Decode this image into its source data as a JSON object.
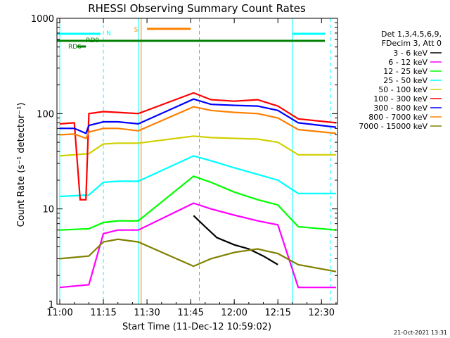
{
  "chart_data": {
    "type": "line",
    "title": "RHESSI Observing Summary Count Rates",
    "xlabel": "Start Time (11-Dec-12 10:59:02)",
    "ylabel": "Count Rate (s⁻¹ detector⁻¹)",
    "y_scale": "log",
    "xlim": [
      "10:59:02",
      "12:35:30"
    ],
    "ylim": [
      1,
      1000
    ],
    "x_ticks": [
      "11:00",
      "11:15",
      "11:30",
      "11:45",
      "12:00",
      "12:15",
      "12:30"
    ],
    "y_ticks": [
      "1",
      "10",
      "100",
      "1000"
    ],
    "legend_header": [
      "Det 1,3,4,5,6,9,",
      "FDecim 3, Att 0"
    ],
    "legend_position": "right",
    "footer_date": "21-Oct-2021 13:31",
    "flags": {
      "N_label": "N",
      "S_label": "S",
      "RD9_label": "RD9",
      "RD6_label": "RD6"
    },
    "gaps": [
      {
        "start": "11:28:00",
        "end": "11:48:00"
      }
    ],
    "series": [
      {
        "name": "3 - 6 keV",
        "color": "#000000",
        "x": [
          "11:46",
          "11:50",
          "11:54",
          "12:00",
          "12:05",
          "12:10",
          "12:15"
        ],
        "y": [
          8.5,
          6.5,
          5.0,
          4.2,
          3.8,
          3.2,
          2.6
        ]
      },
      {
        "name": "6 - 12 keV",
        "color": "#ff00ff",
        "x": [
          "11:00",
          "11:10",
          "11:15",
          "11:20",
          "11:27",
          "11:46",
          "11:52",
          "12:00",
          "12:08",
          "12:15",
          "12:22",
          "12:35"
        ],
        "y": [
          1.5,
          1.6,
          5.5,
          6.0,
          6.0,
          11.5,
          10.0,
          8.6,
          7.5,
          6.8,
          1.5,
          1.5
        ]
      },
      {
        "name": "12 - 25 keV",
        "color": "#00ff00",
        "x": [
          "11:00",
          "11:10",
          "11:15",
          "11:20",
          "11:27",
          "11:46",
          "11:52",
          "12:00",
          "12:08",
          "12:15",
          "12:22",
          "12:35"
        ],
        "y": [
          6.0,
          6.2,
          7.2,
          7.5,
          7.5,
          22,
          19,
          15,
          12.5,
          11,
          6.5,
          6.0
        ]
      },
      {
        "name": "25 - 50 keV",
        "color": "#00ffff",
        "x": [
          "11:00",
          "11:10",
          "11:15",
          "11:20",
          "11:27",
          "11:46",
          "11:52",
          "12:00",
          "12:08",
          "12:15",
          "12:22",
          "12:35"
        ],
        "y": [
          13.5,
          14,
          19,
          19.5,
          19.5,
          36,
          32,
          27,
          23,
          20,
          14.5,
          14.5
        ]
      },
      {
        "name": "50 - 100 keV",
        "color": "#d0d000",
        "x": [
          "11:00",
          "11:10",
          "11:15",
          "11:20",
          "11:27",
          "11:46",
          "11:52",
          "12:00",
          "12:08",
          "12:15",
          "12:22",
          "12:35"
        ],
        "y": [
          36,
          38,
          48,
          49,
          49,
          58,
          56,
          55,
          54,
          50,
          37,
          37
        ]
      },
      {
        "name": "100 - 300 keV",
        "color": "#ff0000",
        "x": [
          "11:00",
          "11:05",
          "11:07",
          "11:09",
          "11:10",
          "11:15",
          "11:20",
          "11:27",
          "11:46",
          "11:52",
          "12:00",
          "12:08",
          "12:15",
          "12:22",
          "12:35"
        ],
        "y": [
          78,
          80,
          12.5,
          12.5,
          100,
          105,
          103,
          100,
          165,
          140,
          135,
          140,
          120,
          88,
          80
        ]
      },
      {
        "name": "300 - 800 keV",
        "color": "#0000ff",
        "x": [
          "11:00",
          "11:05",
          "11:09",
          "11:10",
          "11:15",
          "11:20",
          "11:27",
          "11:46",
          "11:52",
          "12:00",
          "12:08",
          "12:15",
          "12:22",
          "12:35"
        ],
        "y": [
          70,
          70,
          62,
          75,
          82,
          82,
          78,
          142,
          125,
          122,
          120,
          108,
          80,
          72
        ]
      },
      {
        "name": "800 - 7000 keV",
        "color": "#ff8000",
        "x": [
          "11:00",
          "11:05",
          "11:09",
          "11:10",
          "11:15",
          "11:20",
          "11:27",
          "11:46",
          "11:52",
          "12:00",
          "12:08",
          "12:15",
          "12:22",
          "12:35"
        ],
        "y": [
          60,
          61,
          55,
          64,
          70,
          70,
          66,
          118,
          108,
          103,
          100,
          90,
          68,
          62
        ]
      },
      {
        "name": "7000 - 15000 keV",
        "color": "#808000",
        "x": [
          "11:00",
          "11:10",
          "11:15",
          "11:20",
          "11:27",
          "11:46",
          "11:52",
          "12:00",
          "12:08",
          "12:15",
          "12:22",
          "12:35"
        ],
        "y": [
          3.0,
          3.2,
          4.5,
          4.8,
          4.5,
          2.5,
          3.0,
          3.5,
          3.8,
          3.4,
          2.6,
          2.2
        ]
      }
    ]
  }
}
